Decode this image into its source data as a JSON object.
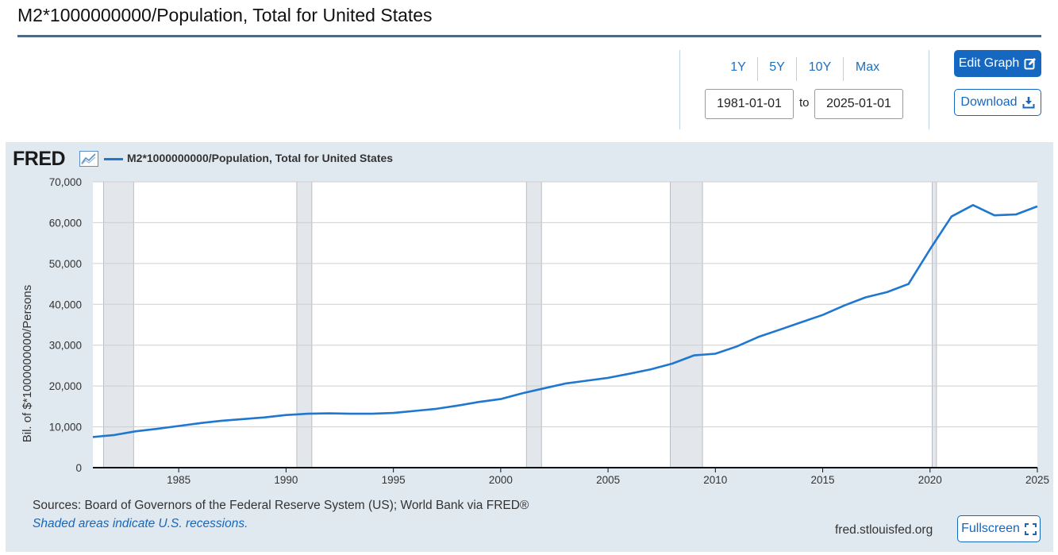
{
  "header": {
    "title": "M2*1000000000/Population, Total for United States"
  },
  "controls": {
    "range_buttons": [
      "1Y",
      "5Y",
      "10Y",
      "Max"
    ],
    "start_date": "1981-01-01",
    "to_label": "to",
    "end_date": "2025-01-01",
    "edit_label": "Edit Graph",
    "download_label": "Download",
    "accent_color": "#1567c0"
  },
  "footer": {
    "sources": "Sources: Board of Governors of the Federal Reserve System (US); World Bank via FRED®",
    "recession_note": "Shaded areas indicate U.S. recessions.",
    "url": "fred.stlouisfed.org",
    "fullscreen_label": "Fullscreen"
  },
  "logo": {
    "text": "FRED"
  },
  "chart_data": {
    "type": "line",
    "title": "",
    "xlabel": "",
    "ylabel": "Bil. of $*1000000000/Persons",
    "xlim": [
      1981,
      2025
    ],
    "ylim": [
      0,
      70000
    ],
    "x_ticks": [
      1985,
      1990,
      1995,
      2000,
      2005,
      2010,
      2015,
      2020,
      2025
    ],
    "y_ticks": [
      0,
      10000,
      20000,
      30000,
      40000,
      50000,
      60000,
      70000
    ],
    "y_tick_labels": [
      "0",
      "10,000",
      "20,000",
      "30,000",
      "40,000",
      "50,000",
      "60,000",
      "70,000"
    ],
    "grid": true,
    "legend_position": "top-left",
    "recessions": [
      [
        1981.5,
        1982.9
      ],
      [
        1990.5,
        1991.2
      ],
      [
        2001.2,
        2001.9
      ],
      [
        2007.9,
        2009.4
      ],
      [
        2020.1,
        2020.3
      ]
    ],
    "series": [
      {
        "name": "M2*1000000000/Population, Total for United States",
        "color": "#1f77d0",
        "x": [
          1981,
          1982,
          1983,
          1984,
          1985,
          1986,
          1987,
          1988,
          1989,
          1990,
          1991,
          1992,
          1993,
          1994,
          1995,
          1996,
          1997,
          1998,
          1999,
          2000,
          2001,
          2002,
          2003,
          2004,
          2005,
          2006,
          2007,
          2008,
          2009,
          2010,
          2011,
          2012,
          2013,
          2014,
          2015,
          2016,
          2017,
          2018,
          2019,
          2020,
          2021,
          2022,
          2023,
          2024,
          2025
        ],
        "y": [
          7500,
          8000,
          8900,
          9500,
          10200,
          10900,
          11500,
          11900,
          12300,
          12900,
          13200,
          13300,
          13200,
          13200,
          13400,
          13900,
          14400,
          15200,
          16100,
          16800,
          18200,
          19400,
          20600,
          21300,
          22000,
          23000,
          24100,
          25500,
          27500,
          27900,
          29700,
          32000,
          33800,
          35600,
          37400,
          39700,
          41700,
          43000,
          45000,
          53500,
          61500,
          64300,
          61800,
          62000,
          64000
        ]
      }
    ]
  }
}
